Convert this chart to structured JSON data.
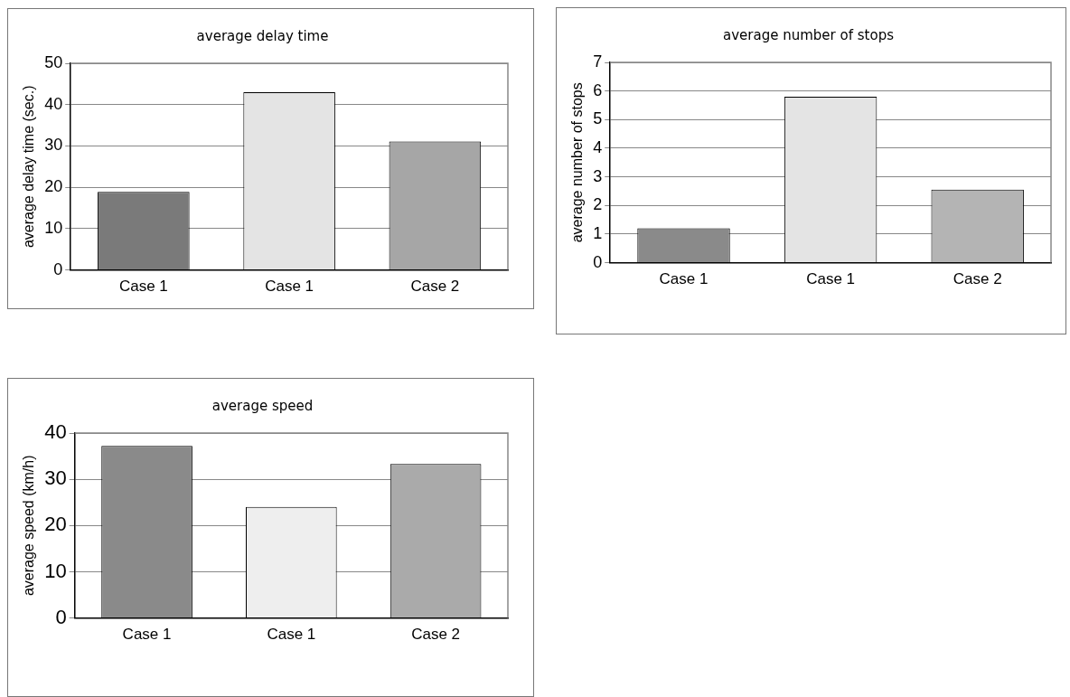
{
  "chart_data": [
    {
      "type": "bar",
      "title": "average delay time",
      "ylabel": "average delay time (sec.)",
      "categories": [
        "Case 1",
        "Case 1",
        "Case 2"
      ],
      "values": [
        18.9,
        43,
        31.1
      ],
      "colors": [
        "#7a7a7a",
        "#e4e4e4",
        "#a6a6a6"
      ],
      "ylim": [
        0,
        50
      ],
      "yticks": [
        0,
        10,
        20,
        30,
        40,
        50
      ],
      "grid": "y"
    },
    {
      "type": "bar",
      "title": "average number of stops",
      "ylabel": "average number of stops",
      "categories": [
        "Case 1",
        "Case 1",
        "Case 2"
      ],
      "values": [
        1.2,
        5.8,
        2.55
      ],
      "colors": [
        "#8a8a8a",
        "#e4e4e4",
        "#b4b4b4"
      ],
      "ylim": [
        0,
        7
      ],
      "yticks": [
        0,
        1,
        2,
        3,
        4,
        5,
        6,
        7
      ],
      "grid": "y"
    },
    {
      "type": "bar",
      "title": "average speed",
      "ylabel": "average speed (km/h)",
      "categories": [
        "Case 1",
        "Case 1",
        "Case 2"
      ],
      "values": [
        37.2,
        24,
        33.3
      ],
      "colors": [
        "#8a8a8a",
        "#eeeeee",
        "#aaaaaa"
      ],
      "ylim": [
        0,
        40
      ],
      "yticks": [
        0,
        10,
        20,
        30,
        40
      ],
      "grid": "y"
    }
  ]
}
